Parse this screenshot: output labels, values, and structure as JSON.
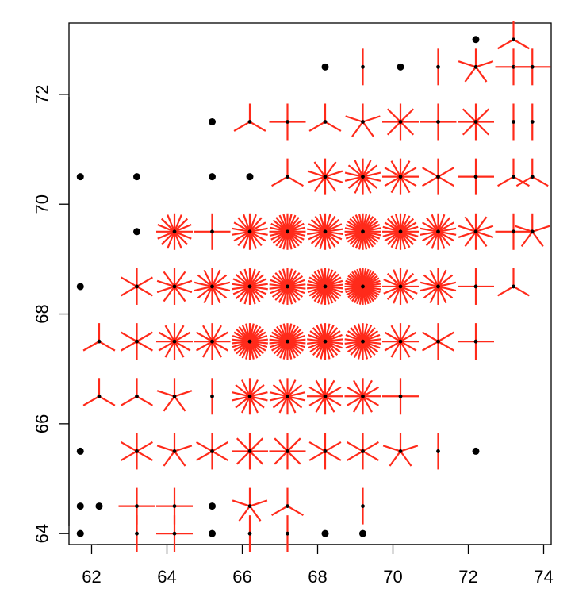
{
  "chart_data": {
    "type": "scatter",
    "subtype": "sunflower",
    "title": "",
    "xlabel": "",
    "ylabel": "",
    "xlim": [
      61.4,
      74.2
    ],
    "ylim": [
      63.8,
      73.3
    ],
    "x_ticks": [
      62,
      64,
      66,
      68,
      70,
      72,
      74
    ],
    "y_ticks": [
      64,
      66,
      68,
      70,
      72
    ],
    "grid": false,
    "colors": {
      "single_point": "#000000",
      "petals": "#ff2a1a"
    },
    "points": [
      {
        "x": 61.7,
        "y": 64.0,
        "n": 1
      },
      {
        "x": 63.2,
        "y": 64.0,
        "n": 2
      },
      {
        "x": 64.2,
        "y": 64.0,
        "n": 4
      },
      {
        "x": 65.2,
        "y": 64.0,
        "n": 1
      },
      {
        "x": 66.2,
        "y": 64.0,
        "n": 2
      },
      {
        "x": 67.2,
        "y": 64.0,
        "n": 2
      },
      {
        "x": 68.2,
        "y": 64.0,
        "n": 1
      },
      {
        "x": 69.2,
        "y": 64.0,
        "n": 1
      },
      {
        "x": 61.7,
        "y": 64.5,
        "n": 1
      },
      {
        "x": 62.2,
        "y": 64.5,
        "n": 1
      },
      {
        "x": 63.2,
        "y": 64.5,
        "n": 4
      },
      {
        "x": 64.2,
        "y": 64.5,
        "n": 4
      },
      {
        "x": 65.2,
        "y": 64.5,
        "n": 1
      },
      {
        "x": 66.2,
        "y": 64.5,
        "n": 5
      },
      {
        "x": 67.2,
        "y": 64.5,
        "n": 3
      },
      {
        "x": 69.2,
        "y": 64.5,
        "n": 2
      },
      {
        "x": 61.7,
        "y": 65.5,
        "n": 1
      },
      {
        "x": 63.2,
        "y": 65.5,
        "n": 6
      },
      {
        "x": 64.2,
        "y": 65.5,
        "n": 5
      },
      {
        "x": 65.2,
        "y": 65.5,
        "n": 6
      },
      {
        "x": 66.2,
        "y": 65.5,
        "n": 8
      },
      {
        "x": 67.2,
        "y": 65.5,
        "n": 8
      },
      {
        "x": 68.2,
        "y": 65.5,
        "n": 6
      },
      {
        "x": 69.2,
        "y": 65.5,
        "n": 6
      },
      {
        "x": 70.2,
        "y": 65.5,
        "n": 5
      },
      {
        "x": 71.2,
        "y": 65.5,
        "n": 2
      },
      {
        "x": 72.2,
        "y": 65.5,
        "n": 1
      },
      {
        "x": 62.2,
        "y": 66.5,
        "n": 3
      },
      {
        "x": 63.2,
        "y": 66.5,
        "n": 3
      },
      {
        "x": 64.2,
        "y": 66.5,
        "n": 5
      },
      {
        "x": 65.2,
        "y": 66.5,
        "n": 2
      },
      {
        "x": 66.2,
        "y": 66.5,
        "n": 14
      },
      {
        "x": 67.2,
        "y": 66.5,
        "n": 14
      },
      {
        "x": 68.2,
        "y": 66.5,
        "n": 12
      },
      {
        "x": 69.2,
        "y": 66.5,
        "n": 12
      },
      {
        "x": 70.2,
        "y": 66.5,
        "n": 4
      },
      {
        "x": 62.2,
        "y": 67.5,
        "n": 3
      },
      {
        "x": 63.2,
        "y": 67.5,
        "n": 6
      },
      {
        "x": 64.2,
        "y": 67.5,
        "n": 12
      },
      {
        "x": 65.2,
        "y": 67.5,
        "n": 12
      },
      {
        "x": 66.2,
        "y": 67.5,
        "n": 30
      },
      {
        "x": 67.2,
        "y": 67.5,
        "n": 30
      },
      {
        "x": 68.2,
        "y": 67.5,
        "n": 26
      },
      {
        "x": 69.2,
        "y": 67.5,
        "n": 26
      },
      {
        "x": 70.2,
        "y": 67.5,
        "n": 12
      },
      {
        "x": 71.2,
        "y": 67.5,
        "n": 6
      },
      {
        "x": 72.2,
        "y": 67.5,
        "n": 4
      },
      {
        "x": 61.7,
        "y": 68.5,
        "n": 1
      },
      {
        "x": 63.2,
        "y": 68.5,
        "n": 6
      },
      {
        "x": 64.2,
        "y": 68.5,
        "n": 10
      },
      {
        "x": 65.2,
        "y": 68.5,
        "n": 14
      },
      {
        "x": 66.2,
        "y": 68.5,
        "n": 22
      },
      {
        "x": 67.2,
        "y": 68.5,
        "n": 26
      },
      {
        "x": 68.2,
        "y": 68.5,
        "n": 30
      },
      {
        "x": 69.2,
        "y": 68.5,
        "n": 40
      },
      {
        "x": 70.2,
        "y": 68.5,
        "n": 16
      },
      {
        "x": 71.2,
        "y": 68.5,
        "n": 14
      },
      {
        "x": 72.2,
        "y": 68.5,
        "n": 4
      },
      {
        "x": 73.2,
        "y": 68.5,
        "n": 3
      },
      {
        "x": 63.2,
        "y": 69.5,
        "n": 1
      },
      {
        "x": 64.2,
        "y": 69.5,
        "n": 16
      },
      {
        "x": 65.2,
        "y": 69.5,
        "n": 4
      },
      {
        "x": 66.2,
        "y": 69.5,
        "n": 18
      },
      {
        "x": 67.2,
        "y": 69.5,
        "n": 28
      },
      {
        "x": 68.2,
        "y": 69.5,
        "n": 22
      },
      {
        "x": 69.2,
        "y": 69.5,
        "n": 32
      },
      {
        "x": 70.2,
        "y": 69.5,
        "n": 24
      },
      {
        "x": 71.2,
        "y": 69.5,
        "n": 18
      },
      {
        "x": 72.2,
        "y": 69.5,
        "n": 10
      },
      {
        "x": 73.2,
        "y": 69.5,
        "n": 4
      },
      {
        "x": 73.7,
        "y": 69.5,
        "n": 5
      },
      {
        "x": 61.7,
        "y": 70.5,
        "n": 1
      },
      {
        "x": 63.2,
        "y": 70.5,
        "n": 1
      },
      {
        "x": 65.2,
        "y": 70.5,
        "n": 1
      },
      {
        "x": 66.2,
        "y": 70.5,
        "n": 1
      },
      {
        "x": 67.2,
        "y": 70.5,
        "n": 3
      },
      {
        "x": 68.2,
        "y": 70.5,
        "n": 10
      },
      {
        "x": 69.2,
        "y": 70.5,
        "n": 14
      },
      {
        "x": 70.2,
        "y": 70.5,
        "n": 12
      },
      {
        "x": 71.2,
        "y": 70.5,
        "n": 6
      },
      {
        "x": 72.2,
        "y": 70.5,
        "n": 4
      },
      {
        "x": 73.2,
        "y": 70.5,
        "n": 3
      },
      {
        "x": 73.7,
        "y": 70.5,
        "n": 3
      },
      {
        "x": 65.2,
        "y": 71.5,
        "n": 1
      },
      {
        "x": 66.2,
        "y": 71.5,
        "n": 3
      },
      {
        "x": 67.2,
        "y": 71.5,
        "n": 4
      },
      {
        "x": 68.2,
        "y": 71.5,
        "n": 3
      },
      {
        "x": 69.2,
        "y": 71.5,
        "n": 5
      },
      {
        "x": 70.2,
        "y": 71.5,
        "n": 8
      },
      {
        "x": 71.2,
        "y": 71.5,
        "n": 4
      },
      {
        "x": 72.2,
        "y": 71.5,
        "n": 8
      },
      {
        "x": 73.2,
        "y": 71.5,
        "n": 2
      },
      {
        "x": 73.7,
        "y": 71.5,
        "n": 2
      },
      {
        "x": 68.2,
        "y": 72.5,
        "n": 1
      },
      {
        "x": 69.2,
        "y": 72.5,
        "n": 2
      },
      {
        "x": 70.2,
        "y": 72.5,
        "n": 1
      },
      {
        "x": 71.2,
        "y": 72.5,
        "n": 2
      },
      {
        "x": 72.2,
        "y": 72.5,
        "n": 5
      },
      {
        "x": 73.2,
        "y": 72.5,
        "n": 4
      },
      {
        "x": 73.7,
        "y": 72.5,
        "n": 4
      },
      {
        "x": 72.2,
        "y": 73.0,
        "n": 1
      },
      {
        "x": 73.2,
        "y": 73.0,
        "n": 3
      }
    ]
  }
}
